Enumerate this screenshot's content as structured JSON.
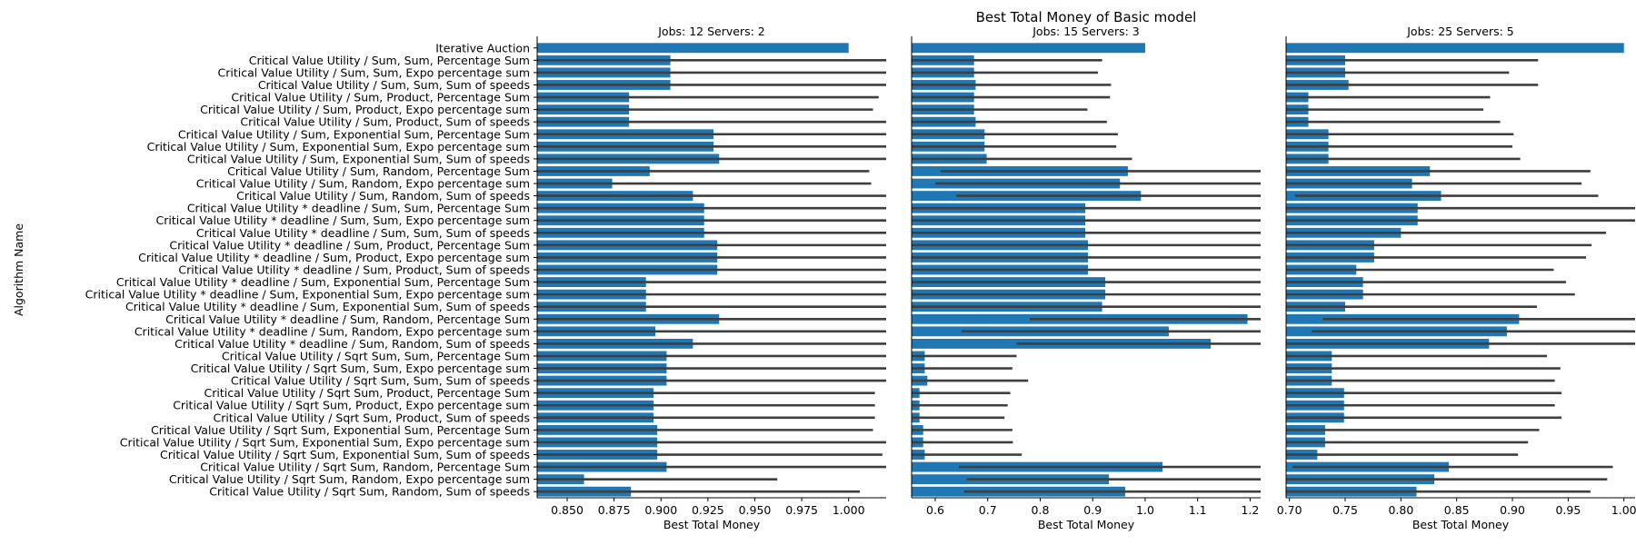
{
  "chart_data": {
    "type": "bar",
    "orientation": "horizontal",
    "title": "Best Total Money of Basic model",
    "ylabel": "Algorithm Name",
    "xlabel": "Best Total Money",
    "colors": {
      "bar": "#1f77b4",
      "errorbar": "#3f3f3f"
    },
    "categories": [
      "Iterative Auction",
      "Critical Value Utility / Sum, Sum, Percentage Sum",
      "Critical Value Utility / Sum, Sum, Expo percentage sum",
      "Critical Value Utility / Sum, Sum, Sum of speeds",
      "Critical Value Utility / Sum, Product, Percentage Sum",
      "Critical Value Utility / Sum, Product, Expo percentage sum",
      "Critical Value Utility / Sum, Product, Sum of speeds",
      "Critical Value Utility / Sum, Exponential Sum, Percentage Sum",
      "Critical Value Utility / Sum, Exponential Sum, Expo percentage sum",
      "Critical Value Utility / Sum, Exponential Sum, Sum of speeds",
      "Critical Value Utility / Sum, Random, Percentage Sum",
      "Critical Value Utility / Sum, Random, Expo percentage sum",
      "Critical Value Utility / Sum, Random, Sum of speeds",
      "Critical Value Utility * deadline / Sum, Sum, Percentage Sum",
      "Critical Value Utility * deadline / Sum, Sum, Expo percentage sum",
      "Critical Value Utility * deadline / Sum, Sum, Sum of speeds",
      "Critical Value Utility * deadline / Sum, Product, Percentage Sum",
      "Critical Value Utility * deadline / Sum, Product, Expo percentage sum",
      "Critical Value Utility * deadline / Sum, Product, Sum of speeds",
      "Critical Value Utility * deadline / Sum, Exponential Sum, Percentage Sum",
      "Critical Value Utility * deadline / Sum, Exponential Sum, Expo percentage sum",
      "Critical Value Utility * deadline / Sum, Exponential Sum, Sum of speeds",
      "Critical Value Utility * deadline / Sum, Random, Percentage Sum",
      "Critical Value Utility * deadline / Sum, Random, Expo percentage sum",
      "Critical Value Utility * deadline / Sum, Random, Sum of speeds",
      "Critical Value Utility / Sqrt Sum, Sum, Percentage Sum",
      "Critical Value Utility / Sqrt Sum, Sum, Expo percentage sum",
      "Critical Value Utility / Sqrt Sum, Sum, Sum of speeds",
      "Critical Value Utility / Sqrt Sum, Product, Percentage Sum",
      "Critical Value Utility / Sqrt Sum, Product, Expo percentage sum",
      "Critical Value Utility / Sqrt Sum, Product, Sum of speeds",
      "Critical Value Utility / Sqrt Sum, Exponential Sum, Percentage Sum",
      "Critical Value Utility / Sqrt Sum, Exponential Sum, Expo percentage sum",
      "Critical Value Utility / Sqrt Sum, Exponential Sum, Sum of speeds",
      "Critical Value Utility / Sqrt Sum, Random, Percentage Sum",
      "Critical Value Utility / Sqrt Sum, Random, Expo percentage sum",
      "Critical Value Utility / Sqrt Sum, Random, Sum of speeds"
    ],
    "panels": [
      {
        "title": "Jobs: 12 Servers: 2",
        "xlim": [
          0.834,
          1.02
        ],
        "xticks": [
          0.85,
          0.875,
          0.9,
          0.925,
          0.95,
          0.975,
          1.0
        ],
        "tick_labels": [
          "0.850",
          "0.875",
          "0.900",
          "0.925",
          "0.950",
          "0.975",
          "1.000"
        ],
        "values": [
          1.0,
          0.905,
          0.905,
          0.905,
          0.883,
          0.883,
          0.883,
          0.928,
          0.928,
          0.931,
          0.894,
          0.874,
          0.917,
          0.923,
          0.923,
          0.923,
          0.93,
          0.93,
          0.93,
          0.892,
          0.892,
          0.892,
          0.931,
          0.897,
          0.917,
          0.903,
          0.903,
          0.903,
          0.896,
          0.896,
          0.896,
          0.898,
          0.898,
          0.898,
          0.903,
          0.859,
          0.884
        ],
        "err_low": [
          null,
          0.834,
          0.834,
          0.834,
          0.834,
          0.834,
          0.834,
          0.834,
          0.834,
          0.834,
          0.834,
          0.834,
          0.834,
          0.834,
          0.834,
          0.834,
          0.834,
          0.834,
          0.834,
          0.834,
          0.834,
          0.834,
          0.834,
          0.834,
          0.834,
          0.834,
          0.834,
          0.834,
          0.834,
          0.834,
          0.834,
          0.834,
          0.834,
          0.834,
          0.834,
          0.834,
          0.834
        ],
        "err_high": [
          null,
          1.02,
          1.02,
          1.02,
          1.016,
          1.013,
          1.02,
          1.02,
          1.02,
          1.02,
          1.011,
          1.012,
          1.02,
          1.02,
          1.02,
          1.02,
          1.02,
          1.02,
          1.02,
          1.02,
          1.02,
          1.02,
          1.02,
          1.02,
          1.02,
          1.02,
          1.02,
          1.02,
          1.014,
          1.014,
          1.014,
          1.013,
          1.02,
          1.018,
          1.02,
          0.962,
          1.006
        ]
      },
      {
        "title": "Jobs: 15 Servers: 3",
        "xlim": [
          0.555,
          1.22
        ],
        "xticks": [
          0.6,
          0.7,
          0.8,
          0.9,
          1.0,
          1.1,
          1.2
        ],
        "tick_labels": [
          "0.6",
          "0.7",
          "0.8",
          "0.9",
          "1.0",
          "1.1",
          "1.2"
        ],
        "values": [
          1.0,
          0.674,
          0.674,
          0.677,
          0.674,
          0.674,
          0.677,
          0.694,
          0.694,
          0.698,
          0.967,
          0.952,
          0.992,
          0.886,
          0.886,
          0.886,
          0.891,
          0.891,
          0.891,
          0.924,
          0.924,
          0.918,
          1.195,
          1.045,
          1.125,
          0.58,
          0.58,
          0.585,
          0.57,
          0.57,
          0.57,
          0.577,
          0.577,
          0.58,
          1.033,
          0.931,
          0.962
        ],
        "err_low": [
          null,
          0.555,
          0.555,
          0.555,
          0.555,
          0.555,
          0.555,
          0.555,
          0.555,
          0.555,
          0.61,
          0.6,
          0.64,
          0.555,
          0.555,
          0.555,
          0.555,
          0.555,
          0.555,
          0.555,
          0.555,
          0.555,
          0.78,
          0.65,
          0.755,
          0.555,
          0.555,
          0.555,
          0.555,
          0.555,
          0.555,
          0.555,
          0.555,
          0.555,
          0.645,
          0.66,
          0.655
        ],
        "err_high": [
          null,
          0.918,
          0.91,
          0.935,
          0.933,
          0.89,
          0.927,
          0.948,
          0.945,
          0.975,
          1.22,
          1.22,
          1.22,
          1.22,
          1.22,
          1.22,
          1.22,
          1.22,
          1.22,
          1.22,
          1.22,
          1.22,
          1.22,
          1.22,
          1.22,
          0.755,
          0.747,
          0.777,
          0.743,
          0.738,
          0.732,
          0.747,
          0.748,
          0.765,
          1.22,
          1.22,
          1.22
        ]
      },
      {
        "title": "Jobs: 25 Servers: 5",
        "xlim": [
          0.697,
          1.01
        ],
        "xticks": [
          0.7,
          0.75,
          0.8,
          0.85,
          0.9,
          0.95,
          1.0
        ],
        "tick_labels": [
          "0.70",
          "0.75",
          "0.80",
          "0.85",
          "0.90",
          "0.95",
          "1.00"
        ],
        "values": [
          1.0,
          0.75,
          0.75,
          0.753,
          0.717,
          0.717,
          0.717,
          0.735,
          0.735,
          0.735,
          0.826,
          0.81,
          0.836,
          0.815,
          0.815,
          0.8,
          0.776,
          0.776,
          0.76,
          0.766,
          0.766,
          0.75,
          0.906,
          0.895,
          0.879,
          0.738,
          0.738,
          0.738,
          0.749,
          0.749,
          0.749,
          0.732,
          0.732,
          0.725,
          0.843,
          0.83,
          0.814
        ],
        "err_low": [
          null,
          0.697,
          0.697,
          0.697,
          0.697,
          0.697,
          0.697,
          0.697,
          0.697,
          0.697,
          0.697,
          0.697,
          0.705,
          0.697,
          0.697,
          0.697,
          0.697,
          0.697,
          0.697,
          0.697,
          0.697,
          0.697,
          0.73,
          0.72,
          0.697,
          0.697,
          0.697,
          0.697,
          0.697,
          0.697,
          0.697,
          0.697,
          0.697,
          0.697,
          0.703,
          0.697,
          0.697
        ],
        "err_high": [
          null,
          0.923,
          0.897,
          0.923,
          0.88,
          0.874,
          0.889,
          0.901,
          0.9,
          0.907,
          0.97,
          0.962,
          0.977,
          1.01,
          1.01,
          0.984,
          0.971,
          0.966,
          0.937,
          0.948,
          0.956,
          0.922,
          1.01,
          1.01,
          1.01,
          0.931,
          0.943,
          0.938,
          0.944,
          0.938,
          0.944,
          0.924,
          0.914,
          0.905,
          0.99,
          0.985,
          0.97
        ]
      }
    ]
  }
}
